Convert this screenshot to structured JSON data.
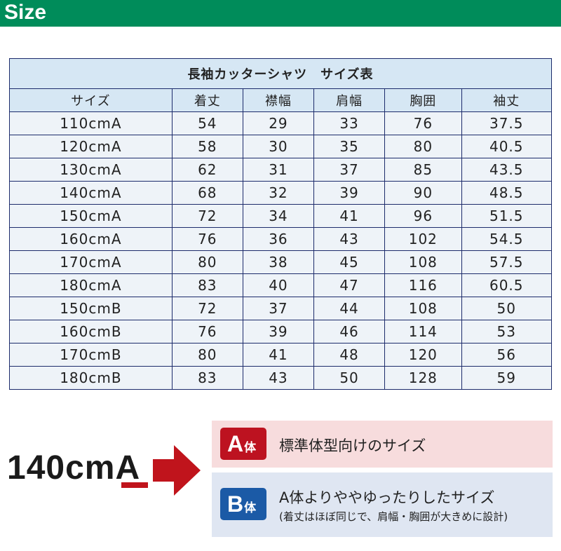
{
  "header": {
    "title": "Size",
    "color": "#008c5a"
  },
  "table": {
    "title": "長袖カッターシャツ　サイズ表",
    "columns": [
      "サイズ",
      "着丈",
      "襟幅",
      "肩幅",
      "胸囲",
      "袖丈"
    ],
    "rows": [
      [
        "110cmA",
        "54",
        "29",
        "33",
        "76",
        "37.5"
      ],
      [
        "120cmA",
        "58",
        "30",
        "35",
        "80",
        "40.5"
      ],
      [
        "130cmA",
        "62",
        "31",
        "37",
        "85",
        "43.5"
      ],
      [
        "140cmA",
        "68",
        "32",
        "39",
        "90",
        "48.5"
      ],
      [
        "150cmA",
        "72",
        "34",
        "41",
        "96",
        "51.5"
      ],
      [
        "160cmA",
        "76",
        "36",
        "43",
        "102",
        "54.5"
      ],
      [
        "170cmA",
        "80",
        "38",
        "45",
        "108",
        "57.5"
      ],
      [
        "180cmA",
        "83",
        "40",
        "47",
        "116",
        "60.5"
      ],
      [
        "150cmB",
        "72",
        "37",
        "44",
        "108",
        "50"
      ],
      [
        "160cmB",
        "76",
        "39",
        "46",
        "114",
        "53"
      ],
      [
        "170cmB",
        "80",
        "41",
        "48",
        "120",
        "56"
      ],
      [
        "180cmB",
        "83",
        "43",
        "50",
        "128",
        "59"
      ]
    ]
  },
  "legend": {
    "example_prefix": "140cm",
    "example_suffix": "A",
    "a": {
      "letter": "A",
      "kanji": "体",
      "text": "標準体型向けのサイズ",
      "color": "#bd1220"
    },
    "b": {
      "letter": "B",
      "kanji": "体",
      "text": "A体よりややゆったりしたサイズ",
      "note": "(着丈はほぼ同じで、肩幅・胸囲が大きめに設計)",
      "color": "#1b5aa6"
    }
  }
}
